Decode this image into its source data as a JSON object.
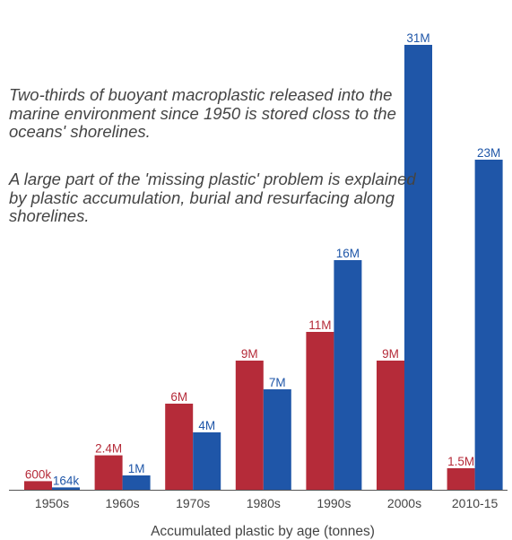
{
  "annotations": {
    "paragraph_1": "Two-thirds of buoyant macroplastic released into the marine environment since 1950 is stored closs to the oceans' shorelines.",
    "paragraph_2": "A large part of the 'missing plastic' problem is explained by plastic accumulation, burial and resurfacing along shorelines."
  },
  "colors": {
    "series_red": "#b52b39",
    "series_blue": "#1f56a8",
    "axis": "#555555"
  },
  "chart_data": {
    "type": "bar",
    "title": "",
    "xlabel": "Accumulated plastic by age (tonnes)",
    "ylabel": "",
    "categories": [
      "1950s",
      "1960s",
      "1970s",
      "1980s",
      "1990s",
      "2000s",
      "2010-15"
    ],
    "ylim": [
      0,
      33.5
    ],
    "grid": false,
    "legend": "none",
    "series": [
      {
        "color_key": "series_red",
        "values": [
          0.6,
          2.4,
          6,
          9,
          11,
          9,
          1.5
        ],
        "labels": [
          "600k",
          "2.4M",
          "6M",
          "9M",
          "11M",
          "9M",
          "1.5M"
        ]
      },
      {
        "color_key": "series_blue",
        "values": [
          0.164,
          1,
          4,
          7,
          16,
          31,
          23
        ],
        "labels": [
          "164k",
          "1M",
          "4M",
          "7M",
          "16M",
          "31M",
          "23M"
        ]
      }
    ]
  }
}
